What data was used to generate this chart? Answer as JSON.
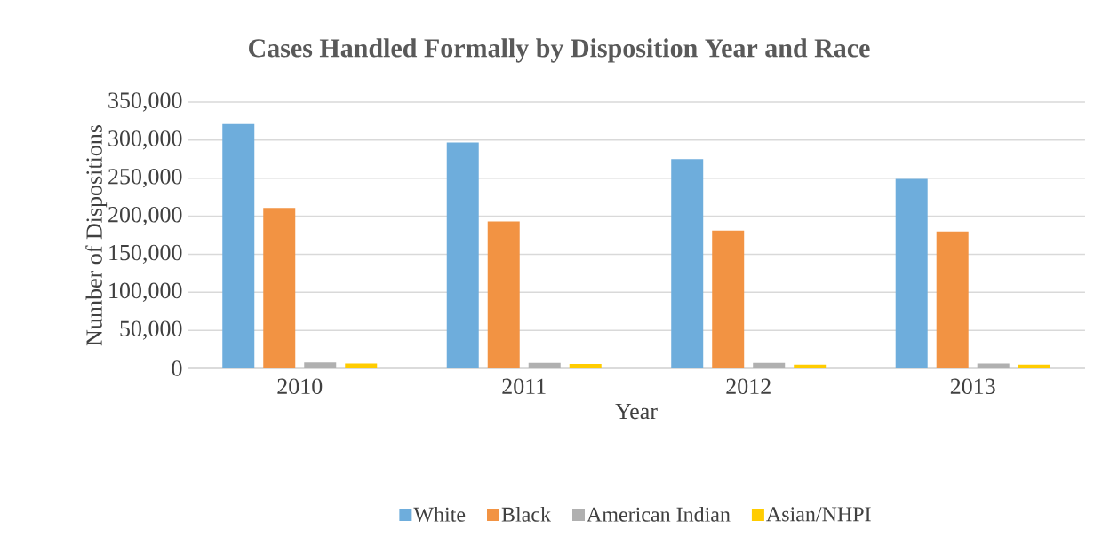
{
  "chart_data": {
    "type": "bar",
    "title": "Cases Handled Formally by Disposition Year and Race",
    "xlabel": "Year",
    "ylabel": "Number of Dispositions",
    "categories": [
      "2010",
      "2011",
      "2012",
      "2013"
    ],
    "series": [
      {
        "name": "White",
        "color": "#6eaddc",
        "values": [
          321000,
          297000,
          275000,
          249000
        ]
      },
      {
        "name": "Black",
        "color": "#f29343",
        "values": [
          211000,
          193000,
          181000,
          180000
        ]
      },
      {
        "name": "American Indian",
        "color": "#b0b0b0",
        "values": [
          8000,
          7300,
          7300,
          6500
        ]
      },
      {
        "name": "Asian/NHPI",
        "color": "#ffcc00",
        "values": [
          6500,
          5800,
          5000,
          5000
        ]
      }
    ],
    "ylim": [
      0,
      350000
    ],
    "yticks": [
      {
        "value": 0,
        "label": "0"
      },
      {
        "value": 50000,
        "label": "50,000"
      },
      {
        "value": 100000,
        "label": "100,000"
      },
      {
        "value": 150000,
        "label": "150,000"
      },
      {
        "value": 200000,
        "label": "200,000"
      },
      {
        "value": 250000,
        "label": "250,000"
      },
      {
        "value": 300000,
        "label": "300,000"
      },
      {
        "value": 350000,
        "label": "350,000"
      }
    ],
    "grid": "y",
    "legend": "bottom"
  }
}
